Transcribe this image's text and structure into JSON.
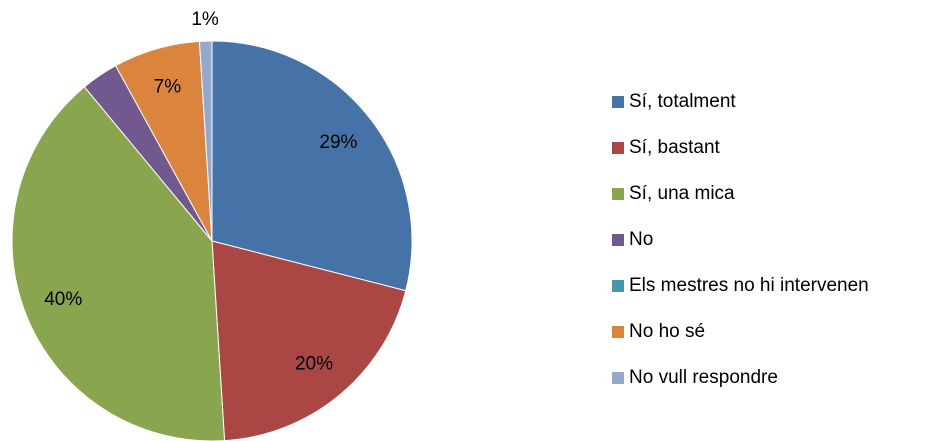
{
  "chart_data": {
    "type": "pie",
    "categories": [
      "Sí, totalment",
      "Sí, bastant",
      "Sí, una mica",
      "No",
      "Els mestres no hi intervenen",
      "No ho sé",
      "No vull respondre"
    ],
    "values": [
      29,
      20,
      40,
      3,
      0,
      7,
      1
    ],
    "value_labels": [
      "29%",
      "20%",
      "40%",
      null,
      null,
      "7%",
      "1%"
    ],
    "colors": [
      "#4572a7",
      "#aa4643",
      "#89a54e",
      "#71588f",
      "#4198af",
      "#db843d",
      "#93a9cf"
    ],
    "legend": "right"
  }
}
